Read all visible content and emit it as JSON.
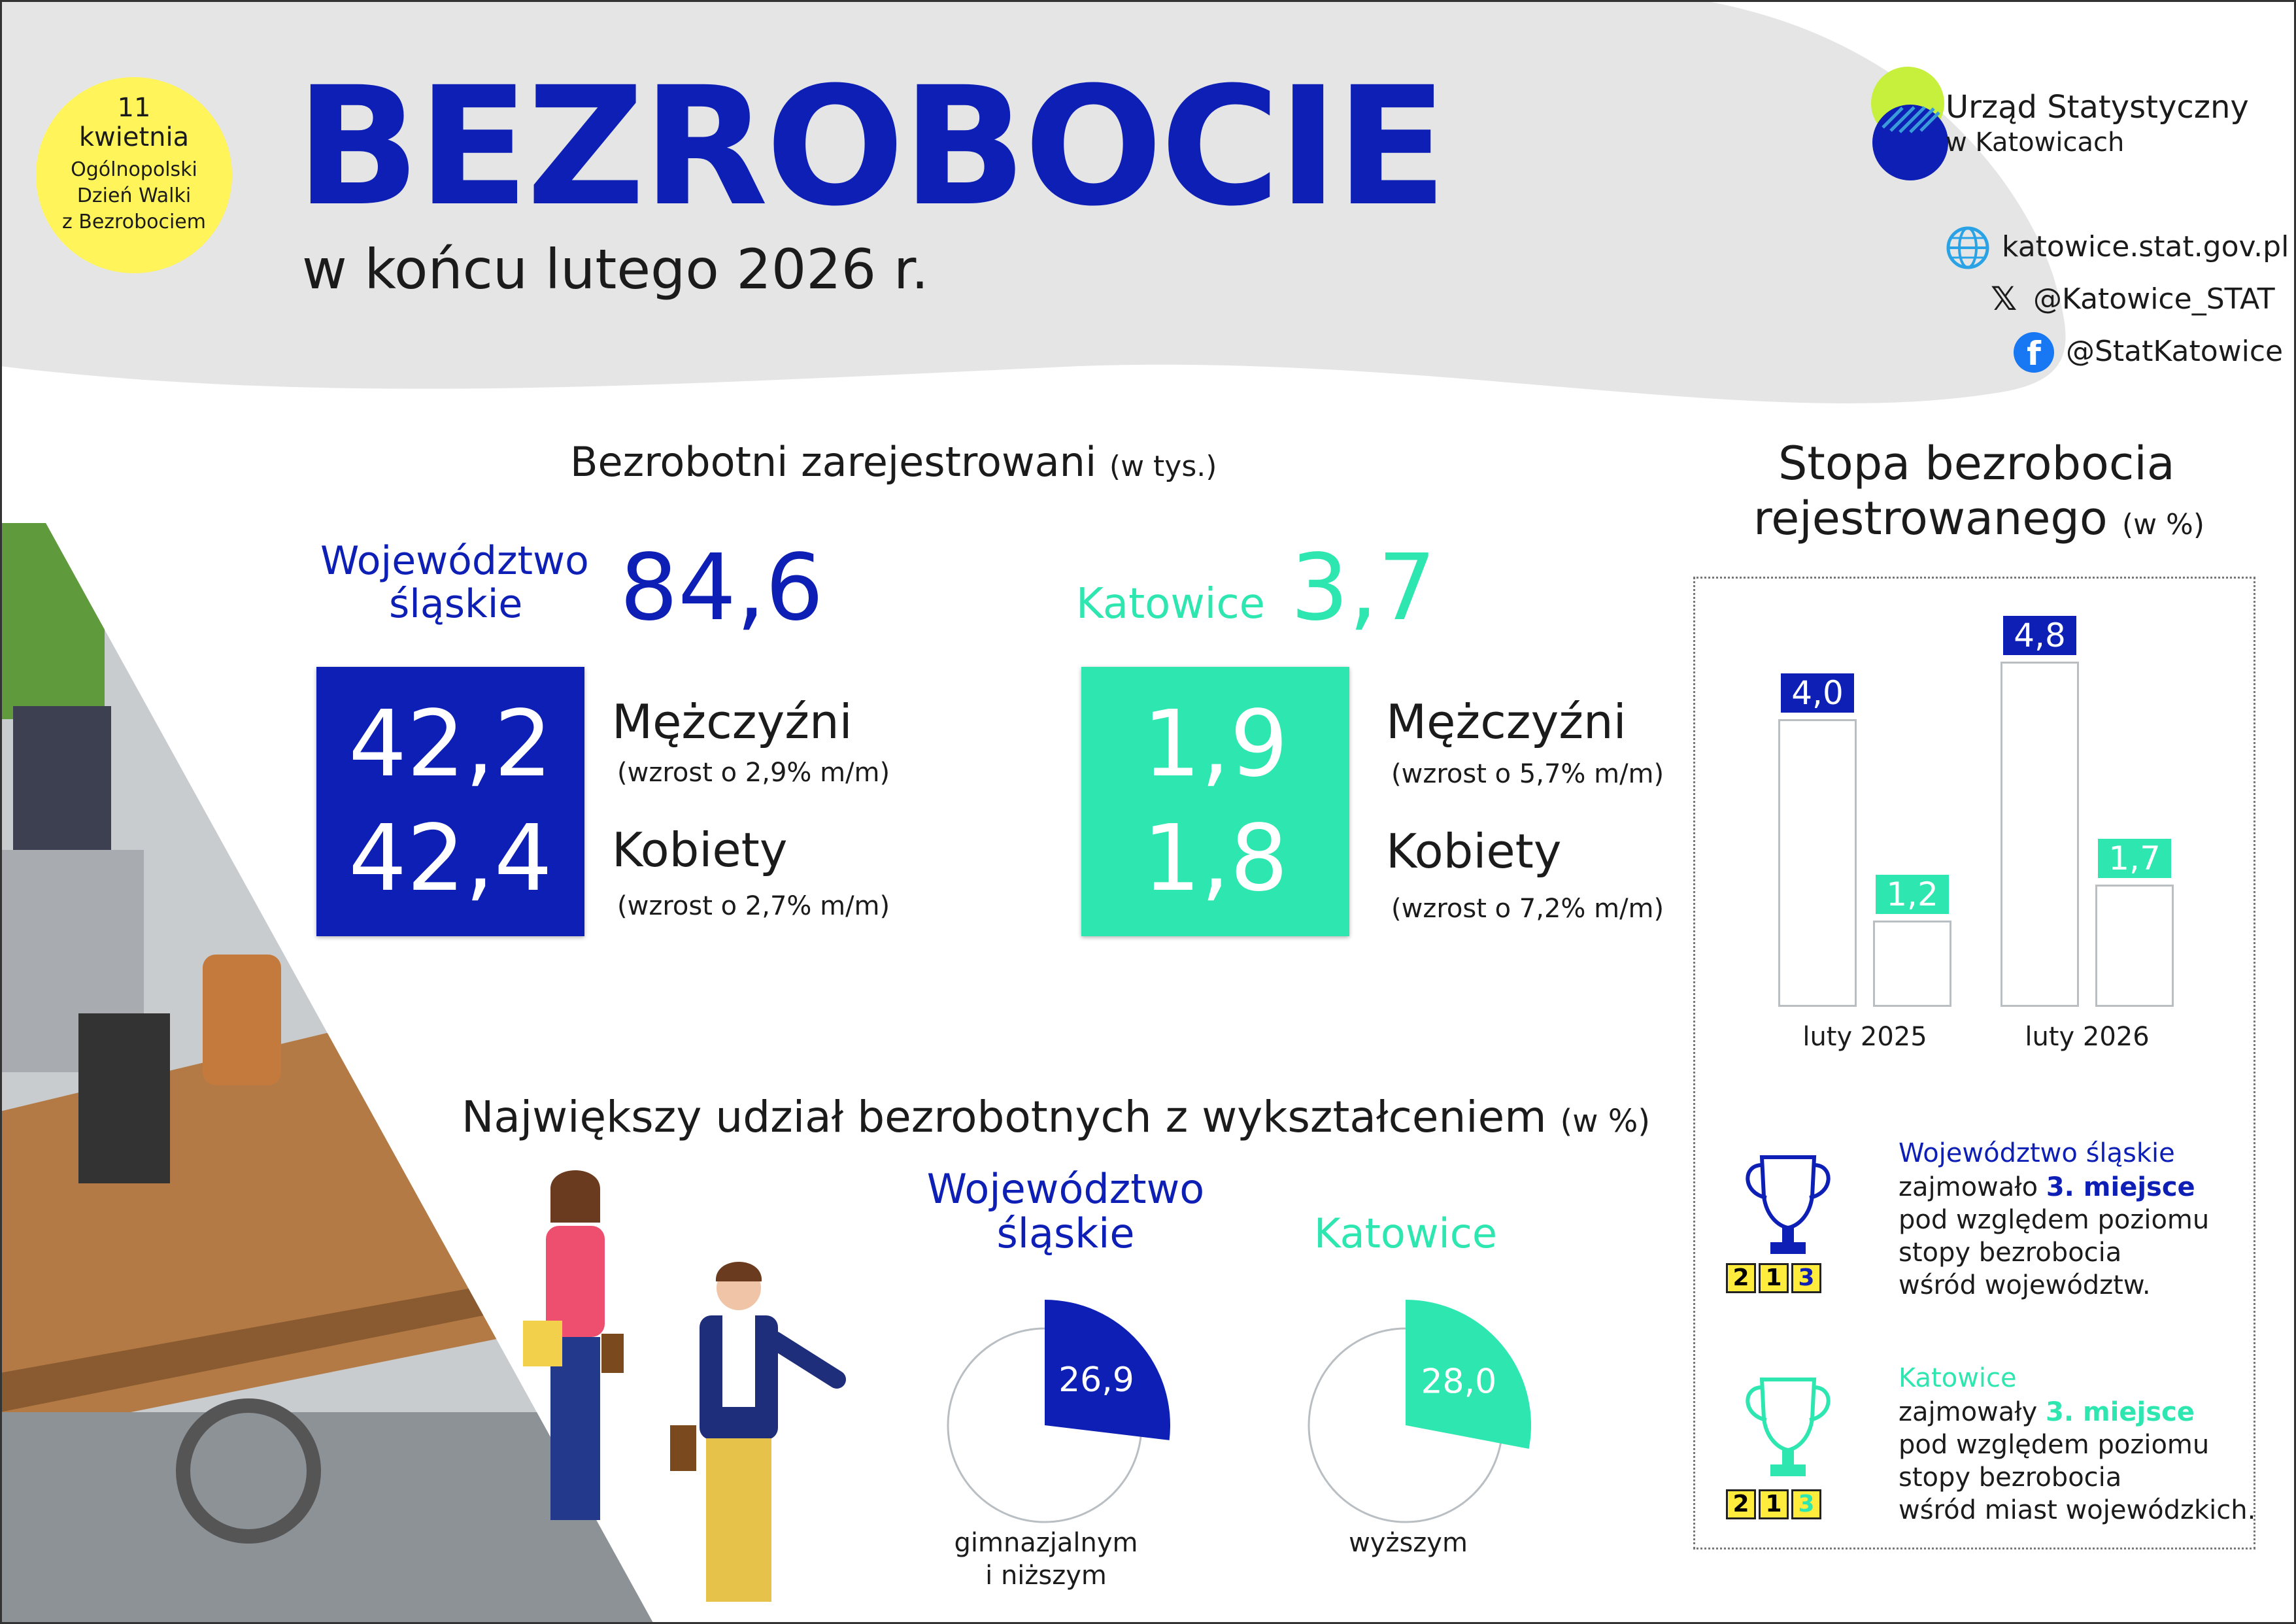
{
  "badge": {
    "line1": "11",
    "line2": "kwietnia",
    "line3": "Ogólnopolski",
    "line4": "Dzień Walki",
    "line5": "z Bezrobociem"
  },
  "header": {
    "title": "BEZROBOCIE",
    "subtitle": "w końcu lutego 2026 r."
  },
  "logo": {
    "line1": "Urząd Statystyczny",
    "line2": "w Katowicach"
  },
  "contacts": {
    "web": "katowice.stat.gov.pl",
    "x": "@Katowice_STAT",
    "facebook": "@StatKatowice"
  },
  "registered": {
    "heading": "Bezrobotni zarejestrowani",
    "unit": "(w tys.)",
    "region": {
      "name_line1": "Województwo",
      "name_line2": "śląskie",
      "total": "84,6",
      "men": "42,2",
      "women": "42,4",
      "men_label": "Mężczyźni",
      "men_note": "(wzrost o 2,9% m/m)",
      "women_label": "Kobiety",
      "women_note": "(wzrost o 2,7% m/m)"
    },
    "city": {
      "name": "Katowice",
      "total": "3,7",
      "men": "1,9",
      "women": "1,8",
      "men_label": "Mężczyźni",
      "men_note": "(wzrost o 5,7% m/m)",
      "women_label": "Kobiety",
      "women_note": "(wzrost o 7,2% m/m)"
    }
  },
  "rate": {
    "heading_line1": "Stopa bezrobocia",
    "heading_line2": "rejestrowanego",
    "unit": "(w %)",
    "chart_data": {
      "type": "bar",
      "categories": [
        "luty 2025",
        "luty 2026"
      ],
      "series": [
        {
          "values": [
            4.0,
            4.8
          ],
          "labels": [
            "4,0",
            "4,8"
          ],
          "color": "#0d1fb5"
        },
        {
          "values": [
            1.2,
            1.7
          ],
          "labels": [
            "1,2",
            "1,7"
          ],
          "color": "#2ee6b0"
        }
      ]
    },
    "rank_region": {
      "name": "Województwo śląskie",
      "line1_pre": "zajmowało ",
      "place": "3. miejsce",
      "line2": "pod względem poziomu",
      "line3": "stopy bezrobocia",
      "line4": "wśród województw."
    },
    "rank_city": {
      "name": "Katowice",
      "line1_pre": "zajmowały ",
      "place": "3. miejsce",
      "line2": "pod względem poziomu",
      "line3": "stopy bezrobocia",
      "line4": "wśród miast wojewódzkich."
    },
    "podium": [
      "2",
      "1",
      "3"
    ]
  },
  "education": {
    "heading": "Największy udział bezrobotnych z wykształceniem",
    "unit": "(w %)",
    "chart_data": [
      {
        "type": "pie",
        "name_line1": "Województwo",
        "name_line2": "śląskie",
        "value": 26.9,
        "label": "26,9",
        "caption_line1": "gimnazjalnym",
        "caption_line2": "i niższym",
        "color": "#0d1fb5"
      },
      {
        "type": "pie",
        "name": "Katowice",
        "value": 28.0,
        "label": "28,0",
        "caption": "wyższym",
        "color": "#2ee6b0"
      }
    ]
  }
}
